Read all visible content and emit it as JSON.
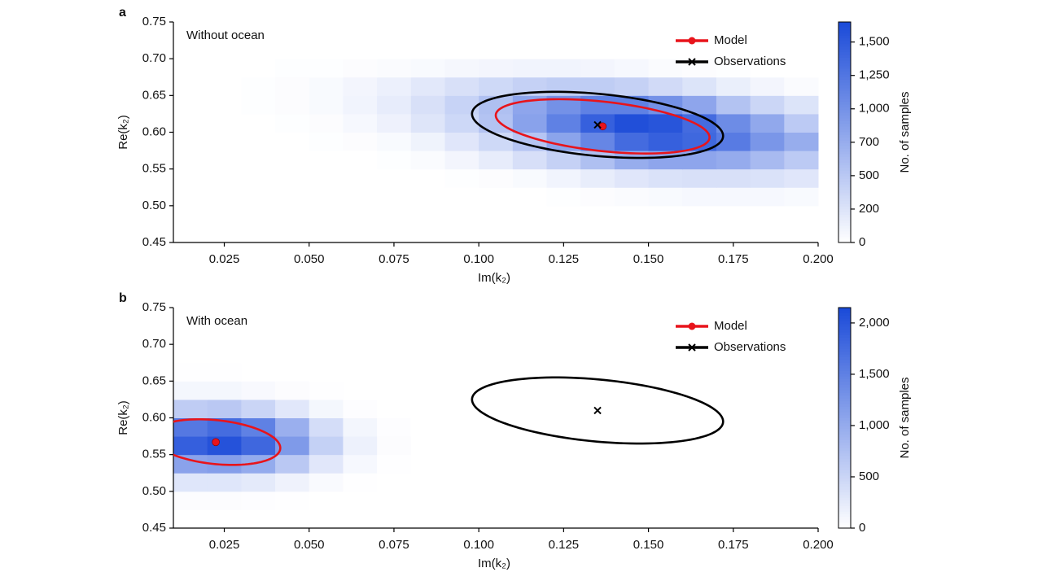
{
  "chart_data": [
    {
      "type": "heatmap",
      "panel_label": "a",
      "annotation": "Without ocean",
      "xlabel": "Im(k₂)",
      "ylabel": "Re(k₂)",
      "xlim": [
        0.01,
        0.2
      ],
      "xticks": [
        0.025,
        {
          "value": 0.05,
          "label": "0.050"
        },
        0.075,
        {
          "value": 0.1,
          "label": "0.100"
        },
        0.125,
        {
          "value": 0.15,
          "label": "0.150"
        },
        0.175,
        {
          "value": 0.2,
          "label": "0.200"
        }
      ],
      "ylim": [
        0.45,
        0.75
      ],
      "yticks": [
        0.45,
        {
          "value": 0.5,
          "label": "0.50"
        },
        0.55,
        {
          "value": 0.6,
          "label": "0.60"
        },
        0.65,
        {
          "value": 0.7,
          "label": "0.70"
        },
        0.75
      ],
      "x_bins": [
        0.01,
        0.02,
        0.03,
        0.04,
        0.05,
        0.06,
        0.07,
        0.08,
        0.09,
        0.1,
        0.11,
        0.12,
        0.13,
        0.14,
        0.15,
        0.16,
        0.17,
        0.18,
        0.19,
        0.2
      ],
      "y_bins": [
        0.45,
        0.475,
        0.5,
        0.525,
        0.55,
        0.575,
        0.6,
        0.625,
        0.65,
        0.675,
        0.7,
        0.725,
        0.75
      ],
      "z": [
        [
          0,
          0,
          0,
          0,
          0,
          0,
          0,
          0,
          0,
          0,
          0,
          0,
          0,
          0,
          0,
          0,
          0,
          0,
          0
        ],
        [
          0,
          0,
          0,
          0,
          0,
          0,
          0,
          0,
          0,
          0,
          0,
          0,
          0,
          0,
          0,
          0,
          0,
          0,
          0
        ],
        [
          0,
          0,
          0,
          0,
          0,
          0,
          0,
          0,
          0,
          0,
          0,
          10,
          20,
          30,
          40,
          50,
          50,
          50,
          40
        ],
        [
          0,
          0,
          0,
          0,
          0,
          0,
          0,
          0,
          10,
          20,
          40,
          80,
          130,
          180,
          220,
          240,
          240,
          220,
          180
        ],
        [
          0,
          0,
          0,
          0,
          0,
          0,
          10,
          30,
          70,
          140,
          250,
          400,
          560,
          700,
          780,
          780,
          720,
          600,
          480
        ],
        [
          0,
          0,
          0,
          0,
          10,
          20,
          40,
          90,
          180,
          320,
          520,
          800,
          1100,
          1350,
          1450,
          1380,
          1200,
          950,
          700
        ],
        [
          0,
          0,
          0,
          10,
          20,
          50,
          100,
          190,
          330,
          540,
          820,
          1150,
          1450,
          1600,
          1550,
          1350,
          1050,
          750,
          480
        ],
        [
          0,
          0,
          10,
          20,
          40,
          80,
          140,
          240,
          380,
          560,
          780,
          1000,
          1150,
          1150,
          1000,
          780,
          540,
          350,
          200
        ],
        [
          0,
          0,
          10,
          20,
          40,
          70,
          110,
          170,
          240,
          320,
          400,
          450,
          450,
          400,
          300,
          200,
          120,
          70,
          30
        ],
        [
          0,
          0,
          0,
          10,
          10,
          20,
          30,
          40,
          60,
          70,
          80,
          80,
          70,
          50,
          30,
          20,
          10,
          0,
          0
        ],
        [
          0,
          0,
          0,
          0,
          0,
          0,
          0,
          0,
          0,
          0,
          0,
          0,
          0,
          0,
          0,
          0,
          0,
          0,
          0
        ],
        [
          0,
          0,
          0,
          0,
          0,
          0,
          0,
          0,
          0,
          0,
          0,
          0,
          0,
          0,
          0,
          0,
          0,
          0,
          0
        ]
      ],
      "colormap": [
        "#ffffff",
        "#1a4ad8"
      ],
      "colorbar_label": "No. of samples",
      "zlim": [
        0,
        1650
      ],
      "zticks": [
        0,
        200,
        500,
        700,
        {
          "value": 1000,
          "label": "1,000"
        },
        {
          "value": 1250,
          "label": "1,250"
        },
        {
          "value": 1500,
          "label": "1,500"
        }
      ],
      "legend": "upper right",
      "series": [
        {
          "name": "Model",
          "color": "#e8141b",
          "marker": "o",
          "x": [
            0.1365
          ],
          "y": [
            0.608
          ],
          "ellipse": {
            "x_radius": 0.0315,
            "y_radius": 0.0338,
            "y_shift": -0.015
          }
        },
        {
          "name": "Observations",
          "color": "#000000",
          "marker": "x",
          "x": [
            0.135
          ],
          "y": [
            0.61
          ],
          "ellipse": {
            "x_radius": 0.037,
            "y_radius": 0.0424,
            "y_shift": -0.015
          }
        }
      ]
    },
    {
      "type": "heatmap",
      "panel_label": "b",
      "annotation": "With ocean",
      "xlabel": "Im(k₂)",
      "ylabel": "Re(k₂)",
      "xlim": [
        0.01,
        0.2
      ],
      "xticks": [
        0.025,
        {
          "value": 0.05,
          "label": "0.050"
        },
        0.075,
        {
          "value": 0.1,
          "label": "0.100"
        },
        0.125,
        {
          "value": 0.15,
          "label": "0.150"
        },
        0.175,
        {
          "value": 0.2,
          "label": "0.200"
        }
      ],
      "ylim": [
        0.45,
        0.75
      ],
      "yticks": [
        0.45,
        {
          "value": 0.5,
          "label": "0.50"
        },
        0.55,
        {
          "value": 0.6,
          "label": "0.60"
        },
        0.65,
        {
          "value": 0.7,
          "label": "0.70"
        },
        0.75
      ],
      "x_bins": [
        0.01,
        0.02,
        0.03,
        0.04,
        0.05,
        0.06,
        0.07,
        0.08,
        0.09,
        0.1,
        0.11,
        0.12,
        0.13,
        0.14,
        0.15,
        0.16,
        0.17,
        0.18,
        0.19,
        0.2
      ],
      "y_bins": [
        0.45,
        0.475,
        0.5,
        0.525,
        0.55,
        0.575,
        0.6,
        0.625,
        0.65,
        0.675,
        0.7,
        0.725,
        0.75
      ],
      "z": [
        [
          0,
          0,
          0,
          0,
          0,
          0,
          0,
          0,
          0,
          0,
          0,
          0,
          0,
          0,
          0,
          0,
          0,
          0,
          0
        ],
        [
          30,
          30,
          20,
          10,
          0,
          0,
          0,
          0,
          0,
          0,
          0,
          0,
          0,
          0,
          0,
          0,
          0,
          0,
          0
        ],
        [
          300,
          300,
          250,
          150,
          60,
          10,
          0,
          0,
          0,
          0,
          0,
          0,
          0,
          0,
          0,
          0,
          0,
          0,
          0
        ],
        [
          1100,
          1150,
          1000,
          650,
          280,
          80,
          10,
          0,
          0,
          0,
          0,
          0,
          0,
          0,
          0,
          0,
          0,
          0,
          0
        ],
        [
          1900,
          2050,
          1800,
          1200,
          550,
          170,
          30,
          0,
          0,
          0,
          0,
          0,
          0,
          0,
          0,
          0,
          0,
          0,
          0
        ],
        [
          1600,
          1750,
          1500,
          950,
          400,
          110,
          20,
          0,
          0,
          0,
          0,
          0,
          0,
          0,
          0,
          0,
          0,
          0,
          0
        ],
        [
          600,
          650,
          500,
          280,
          100,
          20,
          0,
          0,
          0,
          0,
          0,
          0,
          0,
          0,
          0,
          0,
          0,
          0,
          0
        ],
        [
          100,
          100,
          70,
          30,
          10,
          0,
          0,
          0,
          0,
          0,
          0,
          0,
          0,
          0,
          0,
          0,
          0,
          0,
          0
        ],
        [
          10,
          10,
          0,
          0,
          0,
          0,
          0,
          0,
          0,
          0,
          0,
          0,
          0,
          0,
          0,
          0,
          0,
          0,
          0
        ],
        [
          0,
          0,
          0,
          0,
          0,
          0,
          0,
          0,
          0,
          0,
          0,
          0,
          0,
          0,
          0,
          0,
          0,
          0,
          0
        ],
        [
          0,
          0,
          0,
          0,
          0,
          0,
          0,
          0,
          0,
          0,
          0,
          0,
          0,
          0,
          0,
          0,
          0,
          0,
          0
        ],
        [
          0,
          0,
          0,
          0,
          0,
          0,
          0,
          0,
          0,
          0,
          0,
          0,
          0,
          0,
          0,
          0,
          0,
          0,
          0
        ]
      ],
      "colormap": [
        "#ffffff",
        "#1a4ad8"
      ],
      "colorbar_label": "No. of samples",
      "zlim": [
        0,
        2150
      ],
      "zticks": [
        0,
        500,
        {
          "value": 1000,
          "label": "1,000"
        },
        {
          "value": 1500,
          "label": "1,500"
        },
        {
          "value": 2000,
          "label": "2,000"
        }
      ],
      "legend": "upper right",
      "series": [
        {
          "name": "Model",
          "color": "#e8141b",
          "marker": "o",
          "x": [
            0.0225
          ],
          "y": [
            0.567
          ],
          "ellipse": {
            "x_radius": 0.019,
            "y_radius": 0.03,
            "y_shift": -0.008
          }
        },
        {
          "name": "Observations",
          "color": "#000000",
          "marker": "x",
          "x": [
            0.135
          ],
          "y": [
            0.61
          ],
          "ellipse": {
            "x_radius": 0.037,
            "y_radius": 0.0424,
            "y_shift": -0.015
          }
        }
      ]
    }
  ]
}
